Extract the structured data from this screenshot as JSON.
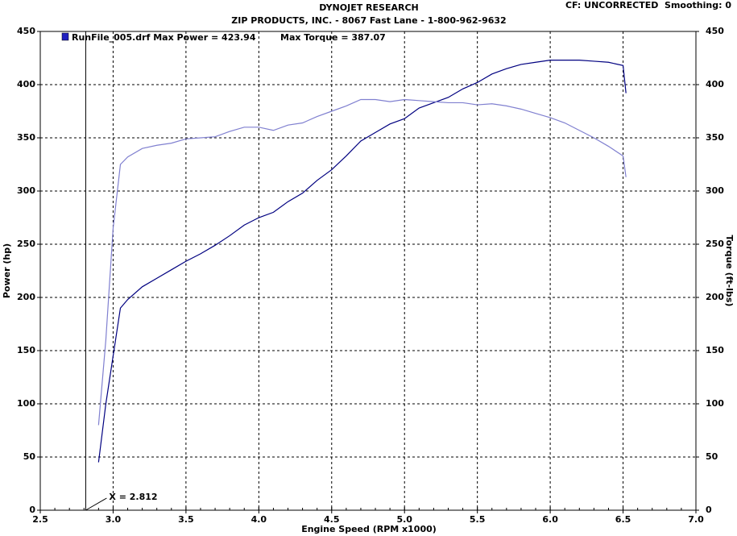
{
  "chart_data": {
    "type": "line",
    "title": "DYNOJET RESEARCH",
    "subtitle": "ZIP PRODUCTS, INC. - 8067 Fast Lane - 1-800-962-9632",
    "corner_note": "CF: UNCORRECTED  Smoothing: 0",
    "x_label": "Engine Speed (RPM x1000)",
    "y_label": "Power (hp)",
    "y2_label": "Torque (ft-lbs)",
    "legend": "RunFile_005.drf Max Power = 423.94",
    "legend_extra": "Max Torque = 387.07",
    "cursor": {
      "value": 2.812,
      "label": "X = 2.812"
    },
    "grid": true,
    "x": [
      2.9,
      2.95,
      3.0,
      3.05,
      3.1,
      3.2,
      3.3,
      3.4,
      3.5,
      3.6,
      3.7,
      3.8,
      3.9,
      4.0,
      4.1,
      4.2,
      4.3,
      4.4,
      4.5,
      4.6,
      4.7,
      4.8,
      4.9,
      5.0,
      5.1,
      5.2,
      5.3,
      5.4,
      5.5,
      5.6,
      5.7,
      5.8,
      5.9,
      6.0,
      6.1,
      6.2,
      6.3,
      6.4,
      6.5,
      6.52
    ],
    "series": [
      {
        "color": "#000080",
        "values": [
          45,
          100,
          145,
          190,
          198,
          210,
          218,
          226,
          234,
          241,
          249,
          258,
          268,
          275,
          280,
          290,
          298,
          310,
          320,
          333,
          347,
          355,
          363,
          368,
          378,
          383,
          388,
          396,
          402,
          410,
          415,
          419,
          421,
          423,
          423,
          423,
          422,
          421,
          418,
          392
        ]
      },
      {
        "color": "#8080d0",
        "axis": "y2",
        "values": [
          80,
          160,
          265,
          325,
          332,
          340,
          343,
          345,
          349,
          350,
          351,
          356,
          360,
          360,
          357,
          362,
          364,
          370,
          375,
          380,
          386,
          386,
          384,
          386,
          385,
          384,
          383,
          383,
          381,
          382,
          380,
          377,
          373,
          369,
          364,
          357,
          350,
          342,
          333,
          313
        ]
      }
    ],
    "xlim": [
      2.5,
      7.0
    ],
    "xticks": [
      2.5,
      {
        "value": 3,
        "label": "3.0"
      },
      3.5,
      {
        "value": 4,
        "label": "4.0"
      },
      4.5,
      {
        "value": 5,
        "label": "5.0"
      },
      5.5,
      {
        "value": 6,
        "label": "6.0"
      },
      6.5,
      {
        "value": 7,
        "label": "7.0"
      }
    ],
    "ylim": [
      0,
      450
    ],
    "yticks": [
      0,
      50,
      100,
      150,
      200,
      250,
      300,
      350,
      400,
      450
    ],
    "y2lim": [
      0,
      450
    ],
    "y2ticks": [
      0,
      50,
      100,
      150,
      200,
      250,
      300,
      350,
      400,
      450
    ]
  }
}
